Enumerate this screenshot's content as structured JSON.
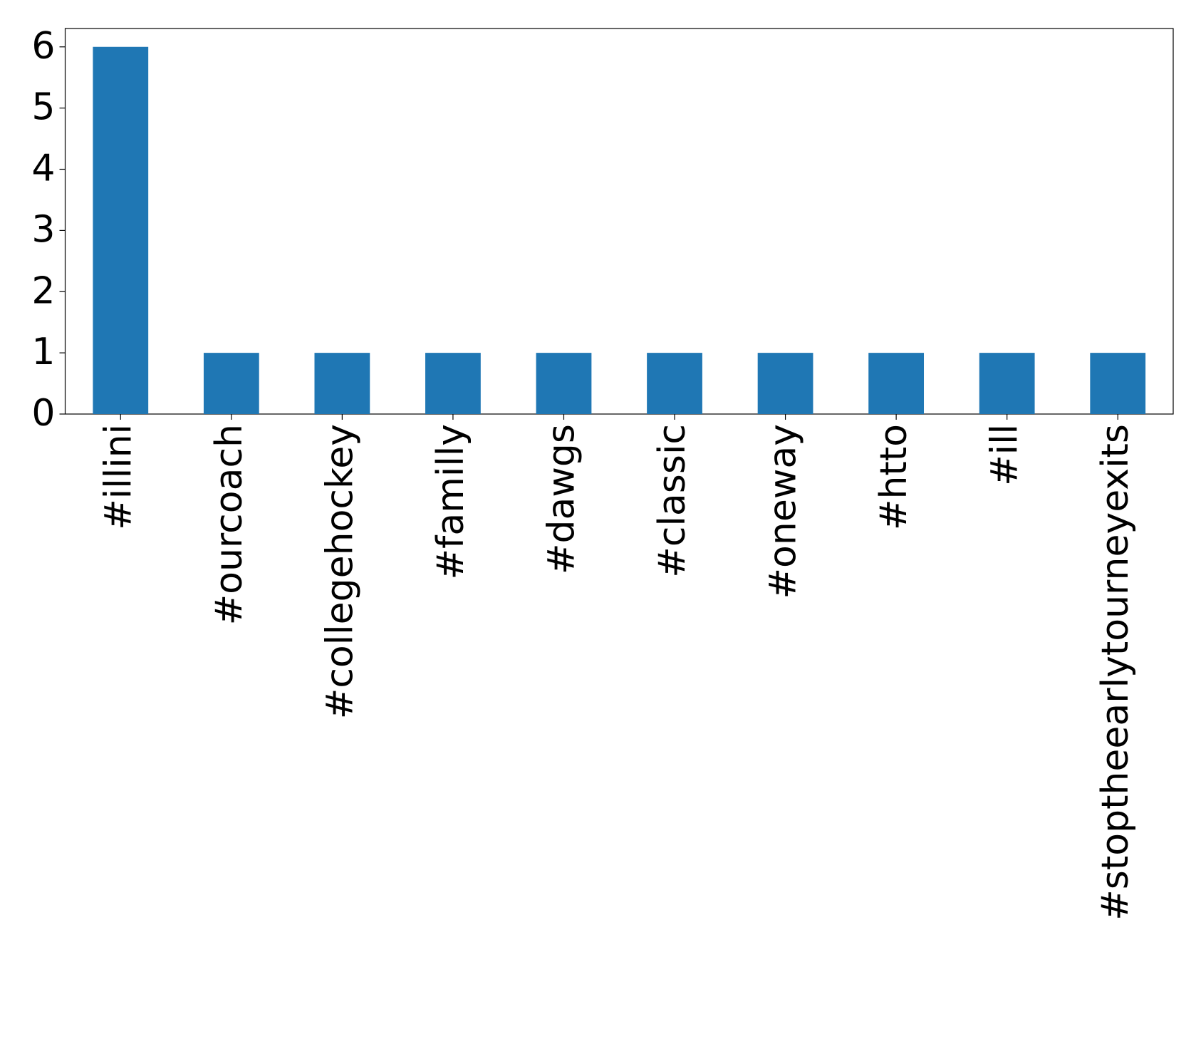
{
  "chart_data": {
    "type": "bar",
    "categories": [
      "#illini",
      "#ourcoach",
      "#collegehockey",
      "#familly",
      "#dawgs",
      "#classic",
      "#oneway",
      "#htto",
      "#ill",
      "#stoptheearlytourneyexits"
    ],
    "values": [
      6,
      1,
      1,
      1,
      1,
      1,
      1,
      1,
      1,
      1
    ],
    "color": "#1f77b4",
    "ylim": [
      0,
      6.3
    ],
    "yticks": [
      0,
      1,
      2,
      3,
      4,
      5,
      6
    ],
    "grid": false
  }
}
